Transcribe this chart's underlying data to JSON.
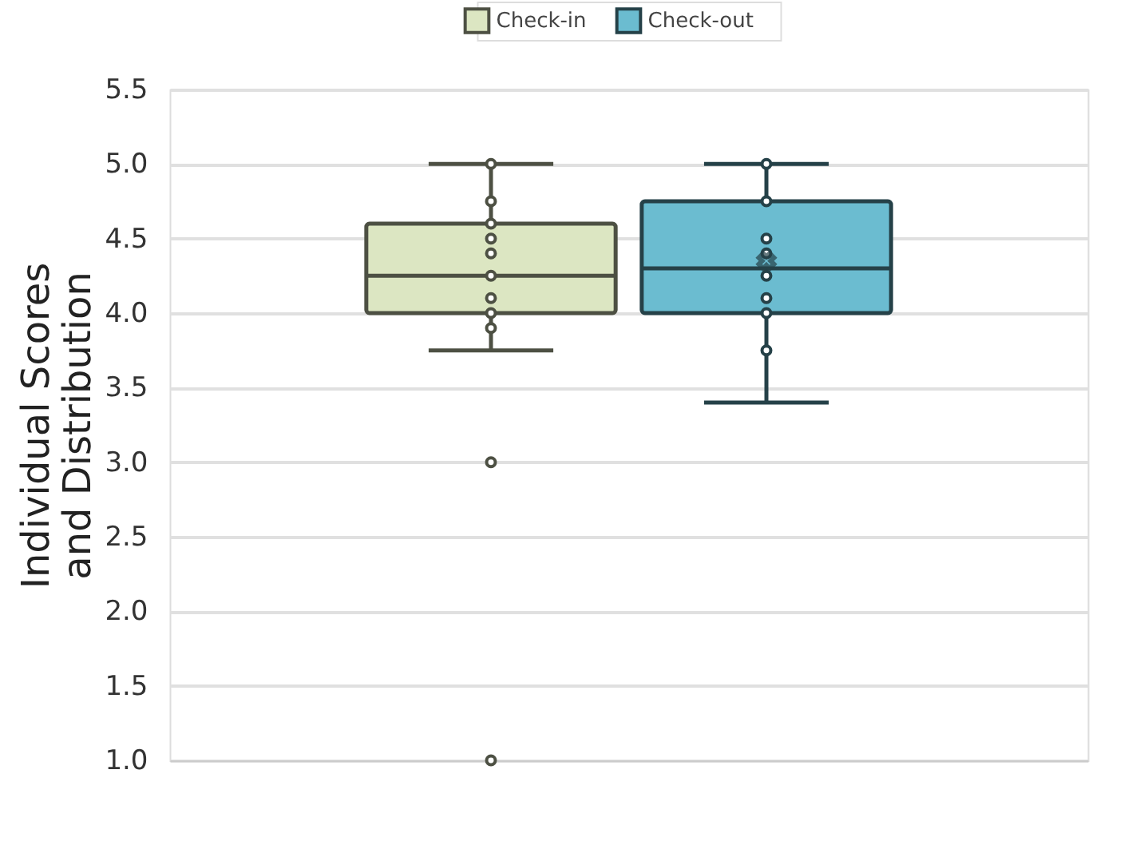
{
  "chart_data": {
    "type": "box",
    "ylabel": "Individual Scores and Distribution",
    "categories": [
      null
    ],
    "series": [
      {
        "name": "Check-in",
        "color": "#dce6c2",
        "boxes": [
          {
            "low": 3.75,
            "q1": 4.0,
            "median": 4.25,
            "q3": 4.6,
            "high": 5.0,
            "outliers": [
              5.0,
              4.75,
              4.6,
              4.5,
              4.4,
              4.25,
              4.1,
              4.0,
              3.9,
              3.0,
              1.0
            ]
          }
        ]
      },
      {
        "name": "Check-out",
        "color": "#6bbcd0",
        "boxes": [
          {
            "low": 3.4,
            "q1": 4.0,
            "median": 4.3,
            "q3": 4.75,
            "high": 5.0,
            "mean": 4.35,
            "outliers": [
              5.0,
              4.75,
              4.5,
              4.4,
              4.25,
              4.1,
              4.0,
              3.75
            ]
          }
        ]
      }
    ],
    "ylim": [
      1.0,
      5.5
    ],
    "yticks": [
      {
        "value": 1.0,
        "label": "1.0"
      },
      {
        "value": 1.5,
        "label": "1.5"
      },
      {
        "value": 2.0,
        "label": "2.0"
      },
      {
        "value": 2.5,
        "label": "2.5"
      },
      {
        "value": 3.0,
        "label": "3.0"
      },
      {
        "value": 3.5,
        "label": "3.5"
      },
      {
        "value": 4.0,
        "label": "4.0"
      },
      {
        "value": 4.5,
        "label": "4.5"
      },
      {
        "value": 5.0,
        "label": "5.0"
      },
      {
        "value": 5.5,
        "label": "5.5"
      }
    ],
    "grid": "y",
    "legend": "top",
    "tick_labels": "y",
    "marker": "circle"
  }
}
